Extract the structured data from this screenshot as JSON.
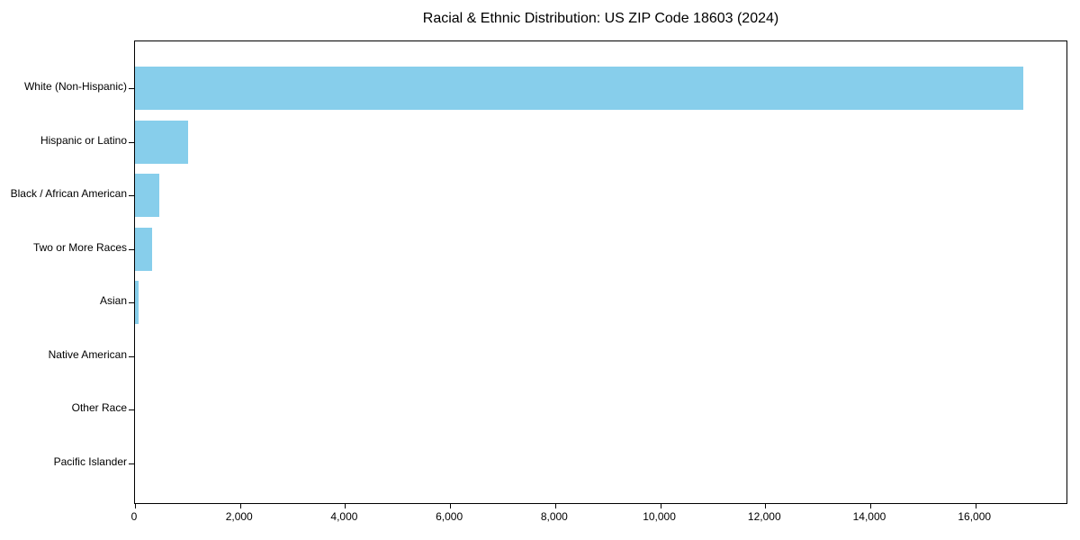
{
  "chart_data": {
    "type": "bar",
    "orientation": "horizontal",
    "title": "Racial & Ethnic Distribution: US ZIP Code 18603 (2024)",
    "categories": [
      "White (Non-Hispanic)",
      "Hispanic or Latino",
      "Black / African American",
      "Two or More Races",
      "Asian",
      "Native American",
      "Other Race",
      "Pacific Islander"
    ],
    "values": [
      16920,
      1015,
      470,
      330,
      70,
      0,
      0,
      0
    ],
    "bar_color": "#87CEEB",
    "xlabel": "",
    "ylabel": "",
    "xlim": [
      0,
      17770
    ],
    "x_ticks": [
      0,
      2000,
      4000,
      6000,
      8000,
      10000,
      12000,
      14000,
      16000
    ],
    "x_tick_labels": [
      "0",
      "2,000",
      "4,000",
      "6,000",
      "8,000",
      "10,000",
      "12,000",
      "14,000",
      "16,000"
    ],
    "grid": false,
    "legend": null,
    "frame": "full-box",
    "text_color": "#000000",
    "background_color": "#ffffff"
  }
}
